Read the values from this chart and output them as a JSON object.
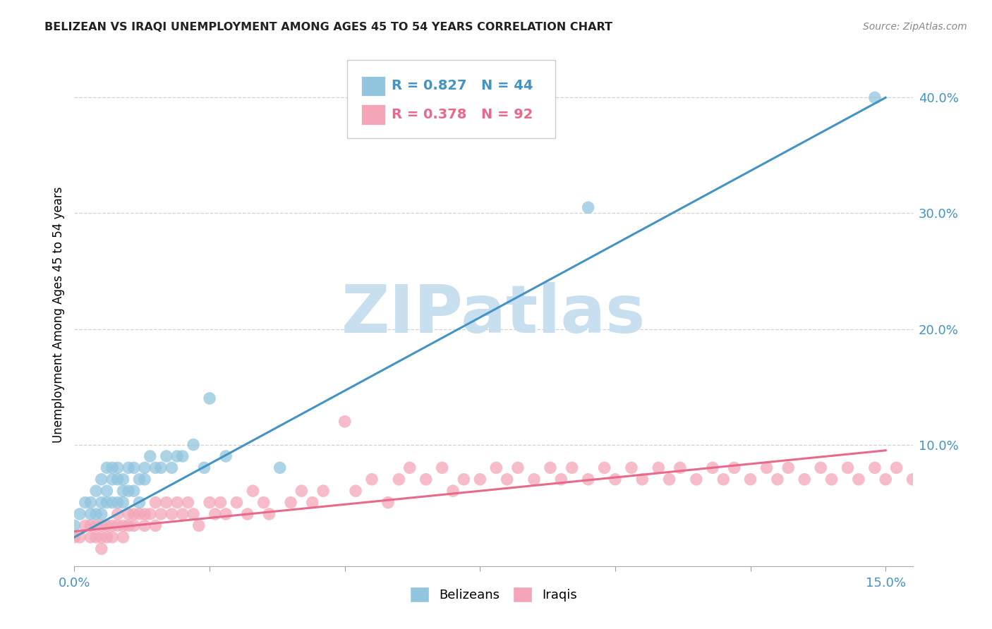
{
  "title": "BELIZEAN VS IRAQI UNEMPLOYMENT AMONG AGES 45 TO 54 YEARS CORRELATION CHART",
  "source": "Source: ZipAtlas.com",
  "ylabel": "Unemployment Among Ages 45 to 54 years",
  "xlim": [
    0.0,
    0.155
  ],
  "ylim": [
    -0.005,
    0.43
  ],
  "belizean_color": "#92c5de",
  "iraqi_color": "#f4a6b8",
  "trendline_belizean_color": "#4393c3",
  "trendline_iraqi_color": "#e8698a",
  "trendline_belizean": [
    0.0,
    0.02,
    0.15,
    0.4
  ],
  "trendline_iraqi": [
    0.0,
    0.025,
    0.15,
    0.095
  ],
  "belizean_x": [
    0.0,
    0.001,
    0.002,
    0.003,
    0.003,
    0.004,
    0.004,
    0.005,
    0.005,
    0.005,
    0.006,
    0.006,
    0.006,
    0.007,
    0.007,
    0.007,
    0.008,
    0.008,
    0.008,
    0.009,
    0.009,
    0.009,
    0.01,
    0.01,
    0.011,
    0.011,
    0.012,
    0.012,
    0.013,
    0.013,
    0.014,
    0.015,
    0.016,
    0.017,
    0.018,
    0.019,
    0.02,
    0.022,
    0.024,
    0.025,
    0.028,
    0.038,
    0.095,
    0.148
  ],
  "belizean_y": [
    0.03,
    0.04,
    0.05,
    0.05,
    0.04,
    0.06,
    0.04,
    0.07,
    0.05,
    0.04,
    0.08,
    0.06,
    0.05,
    0.08,
    0.07,
    0.05,
    0.08,
    0.07,
    0.05,
    0.07,
    0.06,
    0.05,
    0.08,
    0.06,
    0.08,
    0.06,
    0.07,
    0.05,
    0.08,
    0.07,
    0.09,
    0.08,
    0.08,
    0.09,
    0.08,
    0.09,
    0.09,
    0.1,
    0.08,
    0.14,
    0.09,
    0.08,
    0.305,
    0.4
  ],
  "iraqi_x": [
    0.0,
    0.001,
    0.002,
    0.003,
    0.003,
    0.004,
    0.004,
    0.005,
    0.005,
    0.005,
    0.006,
    0.006,
    0.007,
    0.007,
    0.008,
    0.008,
    0.009,
    0.009,
    0.01,
    0.01,
    0.011,
    0.011,
    0.012,
    0.013,
    0.013,
    0.014,
    0.015,
    0.015,
    0.016,
    0.017,
    0.018,
    0.019,
    0.02,
    0.021,
    0.022,
    0.023,
    0.025,
    0.026,
    0.027,
    0.028,
    0.03,
    0.032,
    0.033,
    0.035,
    0.036,
    0.04,
    0.042,
    0.044,
    0.046,
    0.05,
    0.052,
    0.055,
    0.058,
    0.06,
    0.062,
    0.065,
    0.068,
    0.07,
    0.072,
    0.075,
    0.078,
    0.08,
    0.082,
    0.085,
    0.088,
    0.09,
    0.092,
    0.095,
    0.098,
    0.1,
    0.103,
    0.105,
    0.108,
    0.11,
    0.112,
    0.115,
    0.118,
    0.12,
    0.122,
    0.125,
    0.128,
    0.13,
    0.132,
    0.135,
    0.138,
    0.14,
    0.143,
    0.145,
    0.148,
    0.15,
    0.152,
    0.155
  ],
  "iraqi_y": [
    0.02,
    0.02,
    0.03,
    0.02,
    0.03,
    0.02,
    0.03,
    0.03,
    0.02,
    0.01,
    0.03,
    0.02,
    0.03,
    0.02,
    0.03,
    0.04,
    0.03,
    0.02,
    0.04,
    0.03,
    0.04,
    0.03,
    0.04,
    0.04,
    0.03,
    0.04,
    0.05,
    0.03,
    0.04,
    0.05,
    0.04,
    0.05,
    0.04,
    0.05,
    0.04,
    0.03,
    0.05,
    0.04,
    0.05,
    0.04,
    0.05,
    0.04,
    0.06,
    0.05,
    0.04,
    0.05,
    0.06,
    0.05,
    0.06,
    0.12,
    0.06,
    0.07,
    0.05,
    0.07,
    0.08,
    0.07,
    0.08,
    0.06,
    0.07,
    0.07,
    0.08,
    0.07,
    0.08,
    0.07,
    0.08,
    0.07,
    0.08,
    0.07,
    0.08,
    0.07,
    0.08,
    0.07,
    0.08,
    0.07,
    0.08,
    0.07,
    0.08,
    0.07,
    0.08,
    0.07,
    0.08,
    0.07,
    0.08,
    0.07,
    0.08,
    0.07,
    0.08,
    0.07,
    0.08,
    0.07,
    0.08,
    0.07
  ],
  "watermark_text": "ZIPatlas",
  "watermark_color": "#c8dff0"
}
